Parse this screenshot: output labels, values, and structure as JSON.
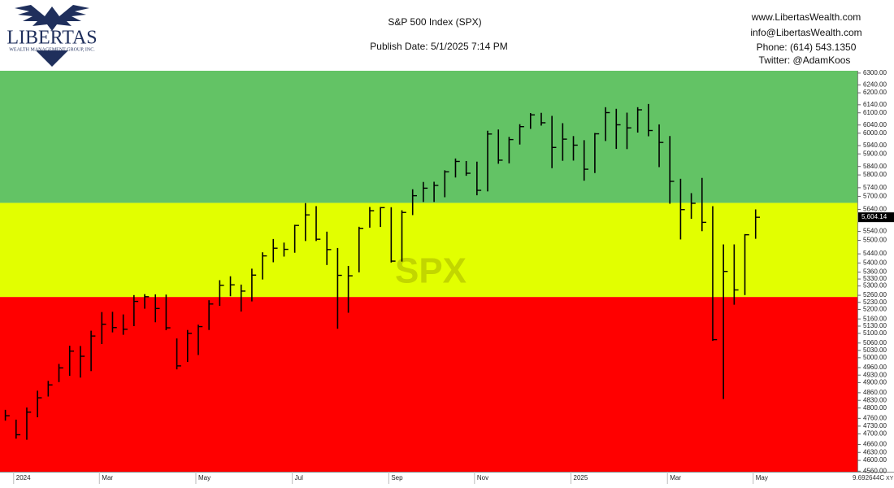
{
  "logo": {
    "name": "LIBERTAS",
    "tagline": "WEALTH MANAGEMENT GROUP, INC."
  },
  "contact": {
    "website": "www.LibertasWealth.com",
    "email": "info@LibertasWealth.com",
    "phone": "Phone: (614) 543.1350",
    "twitter": "Twitter: @AdamKoos"
  },
  "chart_data": {
    "type": "ohlc",
    "title": "S&P 500 Index (SPX)",
    "subtitle": "Publish Date: 5/1/2025 7:14 PM",
    "watermark": "SPX",
    "scale_note": "9.692644C",
    "scale_mode": "XY",
    "color": "#000000",
    "log_scale": true,
    "grid": false,
    "ylim": [
      4558,
      6312
    ],
    "bands": [
      {
        "from": 4558,
        "to": 5253,
        "color": "#ff0000"
      },
      {
        "from": 5253,
        "to": 5670,
        "color": "#e2ff00"
      },
      {
        "from": 5670,
        "to": 6312,
        "color": "#63c365"
      }
    ],
    "last_price": {
      "value": 5604.14,
      "label": "5,604.14"
    },
    "categories": [
      null,
      "2024",
      null,
      null,
      null,
      null,
      null,
      null,
      null,
      "Mar",
      null,
      null,
      null,
      null,
      null,
      null,
      null,
      null,
      "May",
      null,
      null,
      null,
      null,
      null,
      null,
      null,
      null,
      "Jul",
      null,
      null,
      null,
      null,
      null,
      null,
      null,
      null,
      "Sep",
      null,
      null,
      null,
      null,
      null,
      null,
      null,
      "Nov",
      null,
      null,
      null,
      null,
      null,
      null,
      null,
      null,
      "2025",
      null,
      null,
      null,
      null,
      null,
      null,
      null,
      null,
      "Mar",
      null,
      null,
      null,
      null,
      null,
      null,
      null,
      "May"
    ],
    "series": [
      {
        "name": "SPX",
        "color": "#000000",
        "high": [
          4793,
          4755,
          4802,
          4868,
          4907,
          4975,
          5049,
          5048,
          5111,
          5189,
          5190,
          5179,
          5261,
          5265,
          5264,
          5263,
          5079,
          5114,
          5136,
          5239,
          5325,
          5342,
          5306,
          5375,
          5447,
          5506,
          5490,
          5570,
          5669,
          5655,
          5539,
          5466,
          5387,
          5561,
          5651,
          5651,
          5650,
          5636,
          5733,
          5767,
          5768,
          5822,
          5878,
          5866,
          5863,
          6012,
          6018,
          5982,
          6044,
          6099,
          6100,
          6085,
          6049,
          5986,
          5966,
          6001,
          6128,
          6120,
          6101,
          6128,
          6144,
          6043,
          5986,
          5782,
          5715,
          5786,
          5655,
          5482,
          5482,
          5528,
          5640
        ],
        "low": [
          4751,
          4682,
          4678,
          4764,
          4845,
          4902,
          4927,
          4920,
          4946,
          5056,
          5104,
          5094,
          5130,
          5203,
          5146,
          5113,
          4953,
          4983,
          5011,
          5114,
          5215,
          5256,
          5191,
          5234,
          5328,
          5403,
          5428,
          5445,
          5497,
          5497,
          5391,
          5119,
          5186,
          5359,
          5557,
          5560,
          5402,
          5406,
          5614,
          5674,
          5674,
          5696,
          5788,
          5796,
          5705,
          5723,
          5853,
          5855,
          5945,
          6021,
          6037,
          5832,
          5867,
          5868,
          5773,
          5809,
          5962,
          5924,
          5923,
          6003,
          5985,
          5837,
          5666,
          5504,
          5597,
          5541,
          5069,
          4835,
          5220,
          5261,
          5507
        ],
        "close": [
          4770,
          4697,
          4784,
          4840,
          4891,
          4959,
          5027,
          5006,
          5089,
          5138,
          5124,
          5117,
          5234,
          5254,
          5204,
          5123,
          4967,
          5100,
          5128,
          5223,
          5303,
          5305,
          5278,
          5347,
          5431,
          5465,
          5460,
          5567,
          5615,
          5505,
          5459,
          5346,
          5344,
          5554,
          5634,
          5648,
          5408,
          5626,
          5703,
          5738,
          5751,
          5815,
          5864,
          5808,
          5728,
          5996,
          5870,
          5969,
          6032,
          6090,
          6051,
          5931,
          5971,
          5942,
          5827,
          5997,
          6101,
          6041,
          6026,
          6115,
          6013,
          5955,
          5770,
          5639,
          5668,
          5581,
          5074,
          5363,
          5283,
          5525,
          5604
        ]
      }
    ],
    "yticks": [
      {
        "value": 6300,
        "label": "6300.00"
      },
      {
        "value": 6240,
        "label": "6240.00"
      },
      {
        "value": 6200,
        "label": "6200.00"
      },
      {
        "value": 6140,
        "label": "6140.00"
      },
      {
        "value": 6100,
        "label": "6100.00"
      },
      {
        "value": 6040,
        "label": "6040.00"
      },
      {
        "value": 6000,
        "label": "6000.00"
      },
      {
        "value": 5940,
        "label": "5940.00"
      },
      {
        "value": 5900,
        "label": "5900.00"
      },
      {
        "value": 5840,
        "label": "5840.00"
      },
      {
        "value": 5800,
        "label": "5800.00"
      },
      {
        "value": 5740,
        "label": "5740.00"
      },
      {
        "value": 5700,
        "label": "5700.00"
      },
      {
        "value": 5640,
        "label": "5640.00"
      },
      {
        "value": 5540,
        "label": "5540.00"
      },
      {
        "value": 5500,
        "label": "5500.00"
      },
      {
        "value": 5440,
        "label": "5440.00"
      },
      {
        "value": 5400,
        "label": "5400.00"
      },
      {
        "value": 5360,
        "label": "5360.00"
      },
      {
        "value": 5330,
        "label": "5330.00"
      },
      {
        "value": 5300,
        "label": "5300.00"
      },
      {
        "value": 5260,
        "label": "5260.00"
      },
      {
        "value": 5230,
        "label": "5230.00"
      },
      {
        "value": 5200,
        "label": "5200.00"
      },
      {
        "value": 5160,
        "label": "5160.00"
      },
      {
        "value": 5130,
        "label": "5130.00"
      },
      {
        "value": 5100,
        "label": "5100.00"
      },
      {
        "value": 5060,
        "label": "5060.00"
      },
      {
        "value": 5030,
        "label": "5030.00"
      },
      {
        "value": 5000,
        "label": "5000.00"
      },
      {
        "value": 4960,
        "label": "4960.00"
      },
      {
        "value": 4930,
        "label": "4930.00"
      },
      {
        "value": 4900,
        "label": "4900.00"
      },
      {
        "value": 4860,
        "label": "4860.00"
      },
      {
        "value": 4830,
        "label": "4830.00"
      },
      {
        "value": 4800,
        "label": "4800.00"
      },
      {
        "value": 4760,
        "label": "4760.00"
      },
      {
        "value": 4730,
        "label": "4730.00"
      },
      {
        "value": 4700,
        "label": "4700.00"
      },
      {
        "value": 4660,
        "label": "4660.00"
      },
      {
        "value": 4630,
        "label": "4630.00"
      },
      {
        "value": 4600,
        "label": "4600.00"
      },
      {
        "value": 4560,
        "label": "4560.00"
      }
    ]
  }
}
